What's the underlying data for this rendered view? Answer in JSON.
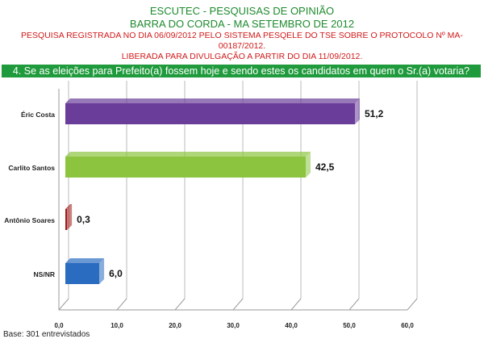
{
  "header": {
    "title": "ESCUTEC - PESQUISAS DE OPINIÃO",
    "subtitle": "BARRA DO CORDA - MA SETEMBRO DE 2012",
    "registration": "PESQUISA REGISTRADA NO DIA 06/09/2012 PELO SISTEMA PESQELE DO TSE SOBRE O PROTOCOLO Nº MA-00187/2012.",
    "release": "LIBERADA PARA DIVULGAÇÃO A PARTIR DO DIA 11/09/2012."
  },
  "footer": {
    "base": "Base: 301 entrevistados"
  },
  "chart_data": {
    "type": "bar",
    "orientation": "horizontal",
    "title": "4. Se as eleições para Prefeito(a) fossem hoje e sendo estes os candidatos em quem o Sr.(a) votaria?",
    "categories": [
      "Éric Costa",
      "Carlito Santos",
      "Antônio Soares",
      "NS/NR"
    ],
    "values": [
      51.2,
      42.5,
      0.3,
      6.0
    ],
    "value_labels": [
      "51,2",
      "42,5",
      "0,3",
      "6,0"
    ],
    "colors": [
      "#6a3d9a",
      "#8dc43f",
      "#a01818",
      "#2a6cc0"
    ],
    "xlim": [
      0,
      60
    ],
    "xticks": [
      "0,0",
      "10,0",
      "20,0",
      "30,0",
      "40,0",
      "50,0",
      "60,0"
    ],
    "grid": true
  }
}
